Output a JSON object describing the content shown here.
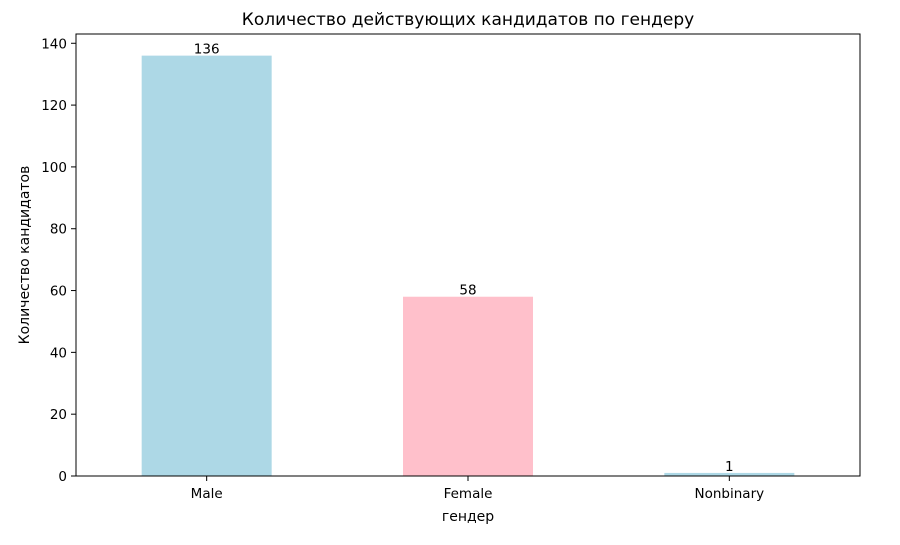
{
  "chart_data": {
    "type": "bar",
    "title": "Количество действующих кандидатов по гендеру",
    "xlabel": "гендер",
    "ylabel": "Количество кандидатов",
    "categories": [
      "Male",
      "Female",
      "Nonbinary"
    ],
    "values": [
      136,
      58,
      1
    ],
    "bar_colors": [
      "#add8e6",
      "#ffc0cb",
      "#add8e6"
    ],
    "ylim": [
      0,
      143
    ],
    "yticks": [
      0,
      20,
      40,
      60,
      80,
      100,
      120,
      140
    ],
    "data_labels": [
      "136",
      "58",
      "1"
    ],
    "grid": false,
    "legend": "none"
  }
}
